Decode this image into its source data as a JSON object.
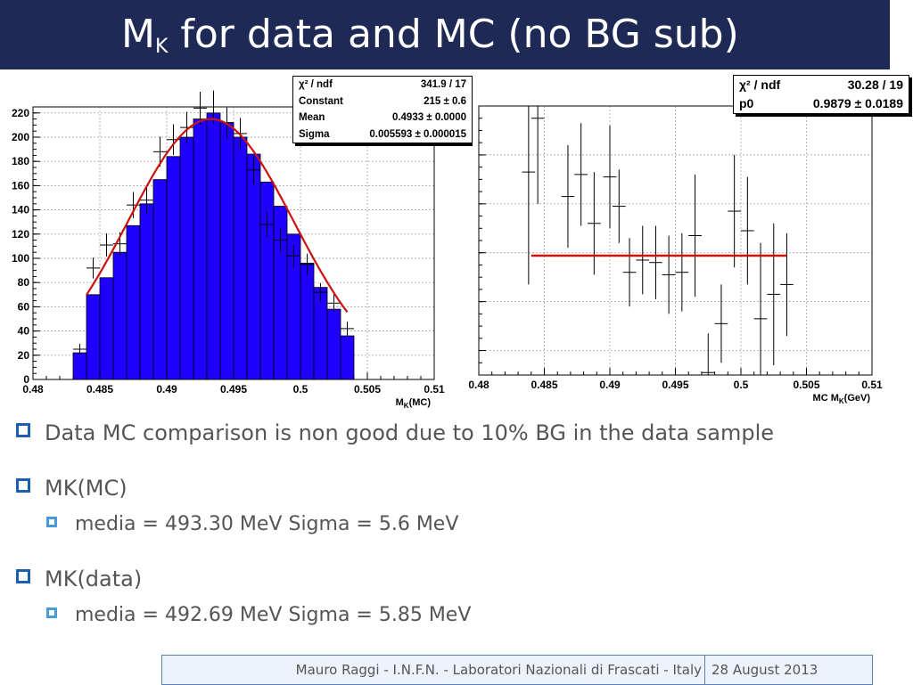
{
  "slide": {
    "title_main": "M",
    "title_sub": "K",
    "title_rest": " for data and MC (no BG sub)"
  },
  "chart_data": [
    {
      "type": "bar",
      "subtype": "histogram-with-fit",
      "title": "",
      "xlabel_main": "M",
      "xlabel_sub": "K",
      "xlabel_rest": "(MC)",
      "ylabel": "",
      "xlim": [
        0.48,
        0.51
      ],
      "ylim": [
        0,
        225
      ],
      "x_ticks": [
        0.48,
        0.485,
        0.49,
        0.495,
        0.5,
        0.505,
        0.51
      ],
      "x_tick_labels": [
        "0.48",
        "0.485",
        "0.49",
        "0.495",
        "0.5",
        "0.505",
        "0.51"
      ],
      "y_ticks": [
        0,
        20,
        40,
        60,
        80,
        100,
        120,
        140,
        160,
        180,
        200,
        220
      ],
      "y_tick_labels": [
        "0",
        "20",
        "40",
        "60",
        "80",
        "100",
        "120",
        "140",
        "160",
        "180",
        "200",
        "220"
      ],
      "bin_edges": [
        0.483,
        0.484,
        0.485,
        0.486,
        0.487,
        0.488,
        0.489,
        0.49,
        0.491,
        0.492,
        0.493,
        0.494,
        0.495,
        0.496,
        0.497,
        0.498,
        0.499,
        0.5,
        0.501,
        0.502,
        0.503,
        0.504
      ],
      "values": [
        22,
        70,
        84,
        105,
        127,
        145,
        165,
        184,
        200,
        215,
        220,
        212,
        200,
        186,
        163,
        143,
        120,
        96,
        76,
        58,
        36
      ],
      "data_points": [
        {
          "x": 0.4835,
          "y": 25
        },
        {
          "x": 0.4845,
          "y": 92
        },
        {
          "x": 0.4855,
          "y": 111
        },
        {
          "x": 0.4865,
          "y": 112
        },
        {
          "x": 0.4875,
          "y": 144
        },
        {
          "x": 0.4885,
          "y": 148
        },
        {
          "x": 0.4895,
          "y": 188
        },
        {
          "x": 0.4905,
          "y": 198
        },
        {
          "x": 0.4915,
          "y": 208
        },
        {
          "x": 0.4925,
          "y": 224
        },
        {
          "x": 0.4935,
          "y": 225
        },
        {
          "x": 0.4945,
          "y": 212
        },
        {
          "x": 0.4955,
          "y": 203
        },
        {
          "x": 0.4965,
          "y": 173
        },
        {
          "x": 0.4975,
          "y": 128
        },
        {
          "x": 0.4985,
          "y": 115
        },
        {
          "x": 0.4995,
          "y": 102
        },
        {
          "x": 0.5005,
          "y": 95
        },
        {
          "x": 0.5015,
          "y": 72
        },
        {
          "x": 0.5025,
          "y": 63
        },
        {
          "x": 0.5035,
          "y": 42
        }
      ],
      "fit": {
        "function": "gaus",
        "constant": 215,
        "mean": 0.4933,
        "sigma": 0.005593,
        "x_range": [
          0.484,
          0.5035
        ]
      },
      "colors": {
        "fill": "#1f00ff",
        "fit": "#cc1111",
        "frame": "#000000"
      },
      "stats": [
        {
          "label": "χ² / ndf",
          "value": "341.9 / 17"
        },
        {
          "label": "Constant",
          "value": "215 ± 0.6"
        },
        {
          "label": "Mean",
          "value": "0.4933 ± 0.0000"
        },
        {
          "label": "Sigma",
          "value": "0.005593 ± 0.000015"
        }
      ]
    },
    {
      "type": "scatter",
      "subtype": "ratio-with-errorbars-and-constant-fit",
      "title": "",
      "xlabel_main": "MC M",
      "xlabel_sub": "K",
      "xlabel_rest": "(GeV)",
      "ylabel": "",
      "xlim": [
        0.48,
        0.51
      ],
      "ylim": [
        0.5,
        1.6
      ],
      "y_ticks": [
        0.6,
        0.8,
        1.0,
        1.2,
        1.4,
        1.6
      ],
      "x_ticks": [
        0.48,
        0.485,
        0.49,
        0.495,
        0.5,
        0.505,
        0.51
      ],
      "x_tick_labels": [
        "0.48",
        "0.485",
        "0.49",
        "0.495",
        "0.5",
        "0.505",
        "0.51"
      ],
      "points": [
        {
          "x": 0.4838,
          "y": 1.33,
          "err": 0.46
        },
        {
          "x": 0.4845,
          "y": 1.55,
          "err": 0.35
        },
        {
          "x": 0.4868,
          "y": 1.23,
          "err": 0.21
        },
        {
          "x": 0.4878,
          "y": 1.32,
          "err": 0.21
        },
        {
          "x": 0.4888,
          "y": 1.12,
          "err": 0.21
        },
        {
          "x": 0.49,
          "y": 1.31,
          "err": 0.21
        },
        {
          "x": 0.4907,
          "y": 1.19,
          "err": 0.15
        },
        {
          "x": 0.4915,
          "y": 0.92,
          "err": 0.14
        },
        {
          "x": 0.4925,
          "y": 0.97,
          "err": 0.14
        },
        {
          "x": 0.4935,
          "y": 0.96,
          "err": 0.15
        },
        {
          "x": 0.4945,
          "y": 0.91,
          "err": 0.16
        },
        {
          "x": 0.4955,
          "y": 0.92,
          "err": 0.16
        },
        {
          "x": 0.4965,
          "y": 1.07,
          "err": 0.25
        },
        {
          "x": 0.4975,
          "y": 0.51,
          "err": 0.16
        },
        {
          "x": 0.4985,
          "y": 0.71,
          "err": 0.16
        },
        {
          "x": 0.4995,
          "y": 1.17,
          "err": 0.23
        },
        {
          "x": 0.5005,
          "y": 1.09,
          "err": 0.22
        },
        {
          "x": 0.5015,
          "y": 0.73,
          "err": 0.31
        },
        {
          "x": 0.5025,
          "y": 0.83,
          "err": 0.29
        },
        {
          "x": 0.5035,
          "y": 0.87,
          "err": 0.21
        }
      ],
      "fit": {
        "function": "pol0",
        "p0": 0.9879,
        "x_range": [
          0.484,
          0.5035
        ]
      },
      "colors": {
        "marker": "#000000",
        "fit": "#cc1111"
      },
      "stats": [
        {
          "label": "χ² / ndf",
          "value": "30.28 / 19"
        },
        {
          "label": "p0",
          "value": "0.9879 ± 0.0189"
        }
      ]
    }
  ],
  "bullets": {
    "b1": "Data MC comparison is non good due to 10% BG in the data sample",
    "b2": "MK(MC)",
    "b2_sub": "media = 493.30 MeV  Sigma = 5.6 MeV",
    "b3": "MK(data)",
    "b3_sub": "media = 492.69 MeV  Sigma = 5.85 MeV"
  },
  "footer": {
    "author": "Mauro Raggi - I.N.F.N. - Laboratori Nazionali di Frascati - Italy",
    "date": "28 August 2013"
  }
}
